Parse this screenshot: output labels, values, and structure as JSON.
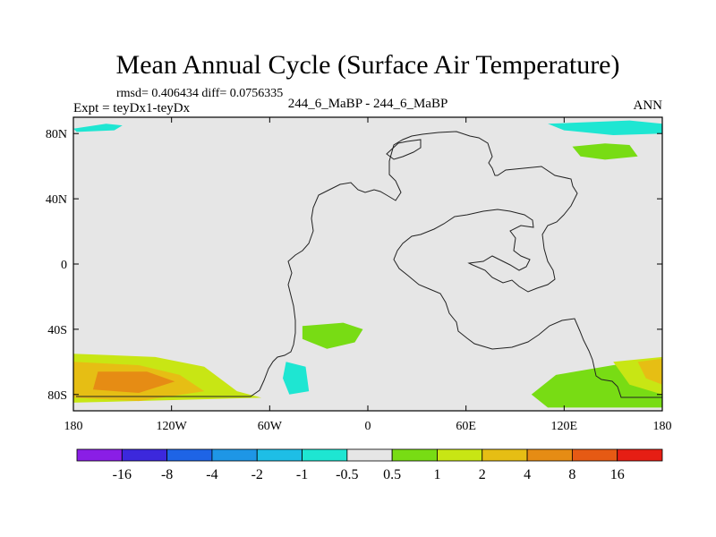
{
  "chart_data": {
    "type": "heatmap",
    "title": "Mean Annual Cycle (Surface Air Temperature)",
    "stats_line": "rmsd= 0.406434 diff= 0.0756335",
    "experiment_label": "Expt = teyDx1-teyDx",
    "case_label": "244_6_MaBP - 244_6_MaBP",
    "season_label": "ANN",
    "variable": "Surface Air Temperature difference",
    "xlim": [
      -180,
      180
    ],
    "ylim": [
      -90,
      90
    ],
    "x_ticks": [
      {
        "value": -180,
        "label": "180"
      },
      {
        "value": -120,
        "label": "120W"
      },
      {
        "value": -60,
        "label": "60W"
      },
      {
        "value": 0,
        "label": "0"
      },
      {
        "value": 60,
        "label": "60E"
      },
      {
        "value": 120,
        "label": "120E"
      },
      {
        "value": 180,
        "label": "180"
      }
    ],
    "y_ticks": [
      {
        "value": 80,
        "label": "80N"
      },
      {
        "value": 40,
        "label": "40N"
      },
      {
        "value": 0,
        "label": "0"
      },
      {
        "value": -40,
        "label": "40S"
      },
      {
        "value": -80,
        "label": "80S"
      }
    ],
    "colorbar": {
      "colors": [
        "#8a1ee6",
        "#3c28dc",
        "#1e64e6",
        "#1e96e6",
        "#1ebee6",
        "#1ee6d2",
        "#e6e6e6",
        "#78dc14",
        "#c8e614",
        "#e6be14",
        "#e68c14",
        "#e65a14",
        "#e61e14"
      ],
      "labels": [
        "-16",
        "-8",
        "-4",
        "-2",
        "-1",
        "-0.5",
        "0.5",
        "1",
        "2",
        "4",
        "8",
        "16"
      ]
    },
    "background_color": "#e6e6e6",
    "anomaly_regions": [
      {
        "name": "arctic-band-west",
        "value_class": "-1 to -0.5",
        "color": "#1ee6d2",
        "lon": [
          [
            -180,
            83
          ],
          [
            -160,
            86
          ],
          [
            -150,
            85
          ],
          [
            -155,
            82
          ],
          [
            -178,
            81
          ]
        ]
      },
      {
        "name": "arctic-band-east",
        "value_class": "-1 to -0.5",
        "color": "#1ee6d2",
        "lon": [
          [
            110,
            86
          ],
          [
            160,
            88
          ],
          [
            180,
            86
          ],
          [
            180,
            80
          ],
          [
            150,
            79
          ],
          [
            120,
            82
          ]
        ]
      },
      {
        "name": "siberia-warm",
        "value_class": "0.5 to 1",
        "color": "#78dc14",
        "lon": [
          [
            125,
            72
          ],
          [
            145,
            74
          ],
          [
            160,
            73
          ],
          [
            165,
            66
          ],
          [
            145,
            64
          ],
          [
            130,
            66
          ]
        ]
      },
      {
        "name": "south-atlantic-warm",
        "value_class": "0.5 to 1",
        "color": "#78dc14",
        "lon": [
          [
            -40,
            -38
          ],
          [
            -15,
            -36
          ],
          [
            -3,
            -40
          ],
          [
            -8,
            -48
          ],
          [
            -25,
            -52
          ],
          [
            -40,
            -46
          ]
        ]
      },
      {
        "name": "south-pacific-warm-outer",
        "value_class": "1 to 2",
        "color": "#c8e614",
        "lon": [
          [
            -180,
            -55
          ],
          [
            -130,
            -57
          ],
          [
            -100,
            -63
          ],
          [
            -80,
            -78
          ],
          [
            -65,
            -82
          ],
          [
            -180,
            -85
          ]
        ]
      },
      {
        "name": "south-pacific-warm-mid",
        "value_class": "2 to 4",
        "color": "#e6be14",
        "lon": [
          [
            -180,
            -60
          ],
          [
            -140,
            -62
          ],
          [
            -115,
            -68
          ],
          [
            -100,
            -78
          ],
          [
            -140,
            -84
          ],
          [
            -180,
            -82
          ]
        ]
      },
      {
        "name": "south-pacific-warm-core",
        "value_class": "4 to 8",
        "color": "#e68c14",
        "lon": [
          [
            -165,
            -66
          ],
          [
            -135,
            -66
          ],
          [
            -118,
            -72
          ],
          [
            -140,
            -79
          ],
          [
            -168,
            -77
          ]
        ]
      },
      {
        "name": "antarctic-cold-patch",
        "value_class": "-1 to -0.5",
        "color": "#1ee6d2",
        "lon": [
          [
            -50,
            -60
          ],
          [
            -38,
            -63
          ],
          [
            -36,
            -78
          ],
          [
            -48,
            -80
          ],
          [
            -52,
            -70
          ]
        ]
      },
      {
        "name": "southern-ocean-east-warm",
        "value_class": "0.5 to 1",
        "color": "#78dc14",
        "lon": [
          [
            100,
            -80
          ],
          [
            115,
            -68
          ],
          [
            150,
            -62
          ],
          [
            180,
            -58
          ],
          [
            180,
            -88
          ],
          [
            110,
            -88
          ]
        ]
      },
      {
        "name": "southern-ocean-east-core",
        "value_class": "1 to 2",
        "color": "#c8e614",
        "lon": [
          [
            150,
            -60
          ],
          [
            180,
            -57
          ],
          [
            180,
            -80
          ],
          [
            160,
            -74
          ]
        ]
      },
      {
        "name": "southern-ocean-east-peak",
        "value_class": "2 to 4",
        "color": "#e6be14",
        "lon": [
          [
            165,
            -60
          ],
          [
            180,
            -58
          ],
          [
            180,
            -74
          ],
          [
            170,
            -70
          ]
        ]
      }
    ]
  }
}
